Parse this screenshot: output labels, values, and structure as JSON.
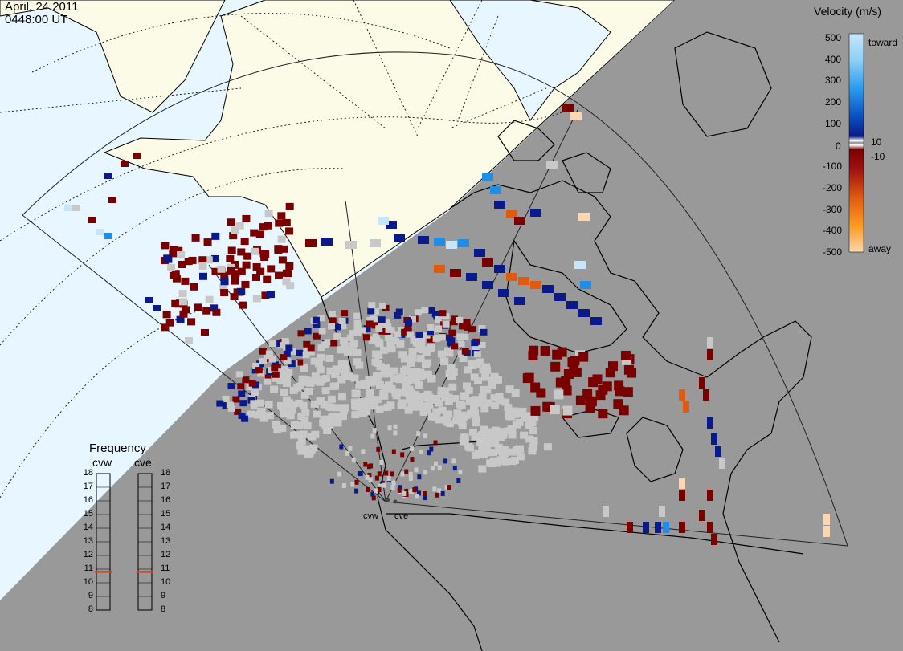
{
  "header": {
    "date": "April, 24 2011",
    "time": "0448:00 UT"
  },
  "velocity_scale": {
    "title": "Velocity (m/s)",
    "tick_labels": [
      "500",
      "400",
      "300",
      "200",
      "100",
      "10",
      "0",
      "-10",
      "-100",
      "-200",
      "-300",
      "-400",
      "-500"
    ],
    "toward_label": "toward",
    "away_label": "away",
    "colors": {
      "toward_light": "#c6e6fb",
      "toward_mid": "#1f8ee8",
      "toward_dark": "#0a1a8a",
      "ground_scatter": "#c8c8c8",
      "away_dark": "#7a0000",
      "away_mid": "#e05a10",
      "away_light": "#fbd6b0"
    }
  },
  "frequency_panel": {
    "title": "Frequency",
    "columns": [
      {
        "name": "cvw",
        "current_mhz": 10.8
      },
      {
        "name": "cve",
        "current_mhz": 10.8
      }
    ],
    "scale_min": 8,
    "scale_max": 18,
    "scale_labels": [
      "18",
      "17",
      "16",
      "15",
      "14",
      "13",
      "12",
      "11",
      "10",
      "9",
      "8"
    ],
    "indicator_color": "#e04010"
  },
  "radars": {
    "west_label": "cvw",
    "east_label": "cve"
  },
  "map_colors": {
    "daylight_ocean": "#e8f7ff",
    "daylight_land": "#fbfbe8",
    "night": "#999999"
  }
}
